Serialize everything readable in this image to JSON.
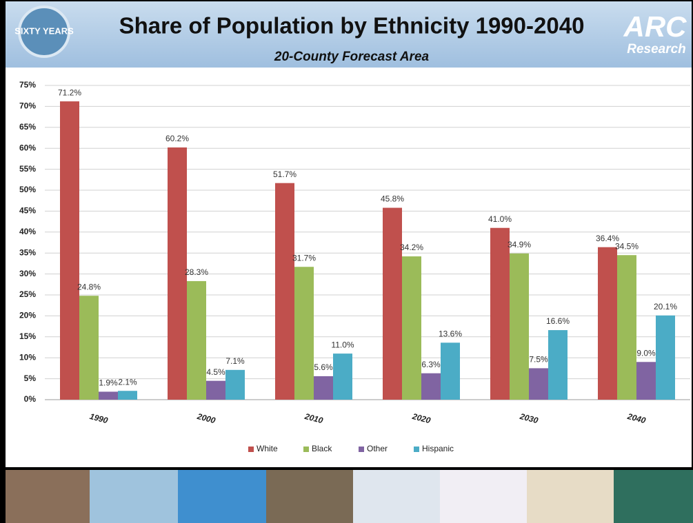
{
  "branding": {
    "badge": "SIXTY YEARS",
    "logo": "ARC",
    "logo_sub": "Research"
  },
  "chart_data": {
    "type": "bar",
    "title": "Share of Population by Ethnicity 1990-2040",
    "subtitle": "20-County Forecast Area",
    "categories": [
      "1990",
      "2000",
      "2010",
      "2020",
      "2030",
      "2040"
    ],
    "series": [
      {
        "name": "White",
        "color": "#c0504d",
        "values": [
          71.2,
          60.2,
          51.7,
          45.8,
          41.0,
          36.4
        ],
        "value_labels": [
          "71.2%",
          "60.2%",
          "51.7%",
          "45.8%",
          "41.0%",
          "36.4%"
        ]
      },
      {
        "name": "Black",
        "color": "#9bbb59",
        "values": [
          24.8,
          28.3,
          31.7,
          34.2,
          34.9,
          34.5
        ],
        "value_labels": [
          "24.8%",
          "28.3%",
          "31.7%",
          "34.2%",
          "34.9%",
          "34.5%"
        ]
      },
      {
        "name": "Other",
        "color": "#8064a2",
        "values": [
          1.9,
          4.5,
          5.6,
          6.3,
          7.5,
          9.0
        ],
        "value_labels": [
          "1.9%",
          "4.5%",
          "5.6%",
          "6.3%",
          "7.5%",
          "9.0%"
        ]
      },
      {
        "name": "Hispanic",
        "color": "#4bacc6",
        "values": [
          2.1,
          7.1,
          11.0,
          13.6,
          16.6,
          20.1
        ],
        "value_labels": [
          "2.1%",
          "7.1%",
          "11.0%",
          "13.6%",
          "16.6%",
          "20.1%"
        ]
      }
    ],
    "ylim": [
      0,
      75
    ],
    "yticks": [
      {
        "value": 0,
        "label": "0%"
      },
      {
        "value": 5,
        "label": "5%"
      },
      {
        "value": 10,
        "label": "10%"
      },
      {
        "value": 15,
        "label": "15%"
      },
      {
        "value": 20,
        "label": "20%"
      },
      {
        "value": 25,
        "label": "25%"
      },
      {
        "value": 30,
        "label": "30%"
      },
      {
        "value": 35,
        "label": "35%"
      },
      {
        "value": 40,
        "label": "40%"
      },
      {
        "value": 45,
        "label": "45%"
      },
      {
        "value": 50,
        "label": "50%"
      },
      {
        "value": 55,
        "label": "55%"
      },
      {
        "value": 60,
        "label": "60%"
      },
      {
        "value": 65,
        "label": "65%"
      },
      {
        "value": 70,
        "label": "70%"
      },
      {
        "value": 75,
        "label": "75%"
      }
    ],
    "grid": true,
    "legend": "bottom"
  }
}
